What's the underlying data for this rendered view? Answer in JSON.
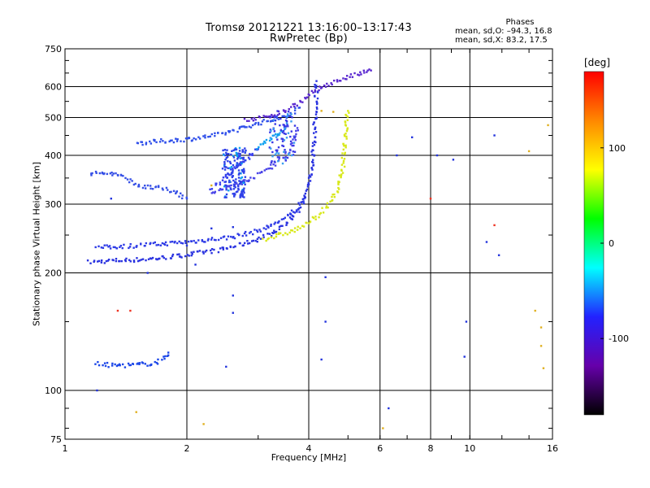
{
  "title_line1": "Tromsø 20121221 13:16:00–13:17:43",
  "title_line2": "RwPretec (Bp)",
  "phases": {
    "title": "Phases",
    "line1": "mean, sd,O: –94.3, 16.8",
    "line2": "mean, sd,X:  83.2, 17.5"
  },
  "colorbar": {
    "unit": "[deg]",
    "ticks": [
      100,
      0,
      -100
    ],
    "range": [
      -180,
      180
    ],
    "colors": [
      "#000000",
      "#6600aa",
      "#2222ff",
      "#00ffff",
      "#00ff00",
      "#ffff00",
      "#ff8800",
      "#ff0000"
    ]
  },
  "chart_data": {
    "type": "scatter",
    "title": "Tromsø 20121221 13:16:00–13:17:43",
    "subtitle": "RwPretec (Bp)",
    "xlabel": "Frequency [MHz]",
    "ylabel": "Stationary phase Virtual Height [km]",
    "x_scale": "log",
    "y_scale": "log",
    "xlim": [
      1,
      16
    ],
    "ylim": [
      75,
      750
    ],
    "x_ticks": [
      1,
      2,
      4,
      6,
      8,
      10,
      16
    ],
    "y_ticks": [
      75,
      100,
      200,
      300,
      400,
      500,
      600,
      750
    ],
    "x_grid": [
      2,
      4,
      6,
      8,
      10
    ],
    "y_grid": [
      100,
      200,
      300,
      400,
      500,
      600
    ],
    "series": [
      {
        "key": "O1",
        "color": "#2a33e0",
        "points": [
          [
            1.15,
            213
          ],
          [
            1.3,
            215
          ],
          [
            1.5,
            216
          ],
          [
            1.7,
            218
          ],
          [
            1.9,
            221
          ],
          [
            2.1,
            224
          ],
          [
            2.4,
            229
          ],
          [
            2.7,
            236
          ],
          [
            3.0,
            244
          ],
          [
            3.3,
            255
          ],
          [
            3.6,
            272
          ],
          [
            3.85,
            300
          ],
          [
            4.0,
            340
          ],
          [
            4.08,
            380
          ],
          [
            4.12,
            430
          ],
          [
            4.15,
            500
          ],
          [
            4.17,
            560
          ],
          [
            4.18,
            620
          ]
        ]
      },
      {
        "key": "O2",
        "color": "#2e3be6",
        "points": [
          [
            1.2,
            232
          ],
          [
            1.5,
            235
          ],
          [
            1.8,
            238
          ],
          [
            2.1,
            241
          ],
          [
            2.5,
            246
          ],
          [
            2.9,
            254
          ],
          [
            3.2,
            263
          ],
          [
            3.5,
            276
          ],
          [
            3.75,
            292
          ],
          [
            3.9,
            310
          ]
        ]
      },
      {
        "key": "O3",
        "color": "#3050ea",
        "points": [
          [
            1.5,
            430
          ],
          [
            1.8,
            436
          ],
          [
            2.1,
            442
          ],
          [
            2.4,
            452
          ],
          [
            2.7,
            468
          ],
          [
            3.0,
            483
          ],
          [
            3.3,
            495
          ],
          [
            3.6,
            510
          ],
          [
            3.8,
            530
          ]
        ]
      },
      {
        "key": "O4",
        "color": "#4a44e8",
        "points": [
          [
            2.3,
            320
          ],
          [
            2.6,
            335
          ],
          [
            2.9,
            350
          ],
          [
            3.2,
            372
          ],
          [
            3.5,
            400
          ],
          [
            3.65,
            430
          ],
          [
            3.75,
            470
          ]
        ]
      },
      {
        "key": "O5",
        "color": "#3a40f0",
        "points": [
          [
            2.3,
            330
          ],
          [
            2.5,
            350
          ],
          [
            2.6,
            370
          ],
          [
            2.8,
            390
          ],
          [
            3.0,
            415
          ]
        ]
      },
      {
        "key": "O6",
        "color": "#1c47e8",
        "points": [
          [
            1.2,
            117
          ],
          [
            1.3,
            116
          ],
          [
            1.45,
            116
          ],
          [
            1.6,
            117
          ],
          [
            1.7,
            118
          ],
          [
            1.8,
            125
          ]
        ]
      },
      {
        "key": "O7",
        "color": "#3650e6",
        "points": [
          [
            1.15,
            360
          ],
          [
            1.25,
            360
          ],
          [
            1.35,
            358
          ],
          [
            1.55,
            332
          ],
          [
            1.7,
            330
          ],
          [
            1.9,
            320
          ],
          [
            2.0,
            310
          ]
        ]
      },
      {
        "key": "X1",
        "color": "#d8e81a",
        "points": [
          [
            3.1,
            244
          ],
          [
            3.4,
            250
          ],
          [
            3.7,
            258
          ],
          [
            4.0,
            268
          ],
          [
            4.3,
            285
          ],
          [
            4.55,
            305
          ],
          [
            4.75,
            335
          ],
          [
            4.85,
            370
          ],
          [
            4.9,
            420
          ],
          [
            4.95,
            480
          ],
          [
            5.0,
            520
          ]
        ]
      },
      {
        "key": "X2",
        "color": "#0aa0f0",
        "points": [
          [
            3.0,
            420
          ],
          [
            3.2,
            440
          ],
          [
            3.4,
            455
          ],
          [
            3.5,
            470
          ]
        ]
      },
      {
        "key": "top-streak",
        "color": "#5a28d0",
        "points": [
          [
            2.8,
            492
          ],
          [
            3.1,
            500
          ],
          [
            3.5,
            520
          ],
          [
            3.9,
            555
          ],
          [
            4.2,
            590
          ],
          [
            4.5,
            610
          ],
          [
            4.9,
            630
          ],
          [
            5.4,
            650
          ],
          [
            5.7,
            660
          ]
        ]
      },
      {
        "key": "scattered",
        "color": "#2233dd",
        "points": [
          [
            2.6,
            262
          ],
          [
            2.3,
            260
          ],
          [
            2.6,
            158
          ],
          [
            2.0,
            235
          ],
          [
            4.4,
            195
          ],
          [
            4.4,
            150
          ],
          [
            4.3,
            120
          ],
          [
            2.5,
            115
          ],
          [
            2.6,
            175
          ],
          [
            6.3,
            90
          ],
          [
            6.6,
            400
          ],
          [
            7.2,
            445
          ],
          [
            8.3,
            400
          ],
          [
            9.1,
            390
          ],
          [
            9.8,
            150
          ],
          [
            11.0,
            240
          ],
          [
            11.5,
            450
          ],
          [
            11.8,
            222
          ],
          [
            9.7,
            122
          ],
          [
            1.3,
            310
          ],
          [
            1.2,
            100
          ],
          [
            1.6,
            200
          ],
          [
            2.1,
            210
          ]
        ]
      },
      {
        "key": "scattered-yellow",
        "color": "#e0b020",
        "points": [
          [
            1.5,
            88
          ],
          [
            2.2,
            82
          ],
          [
            6.1,
            80
          ],
          [
            14.5,
            160
          ],
          [
            15.0,
            145
          ],
          [
            15.0,
            130
          ],
          [
            15.2,
            114
          ],
          [
            15.6,
            478
          ],
          [
            14.0,
            410
          ],
          [
            2.3,
            335
          ],
          [
            4.6,
            517
          ],
          [
            4.3,
            520
          ]
        ]
      },
      {
        "key": "scattered-red",
        "color": "#ee3322",
        "points": [
          [
            1.35,
            160
          ],
          [
            1.45,
            160
          ],
          [
            8.0,
            310
          ],
          [
            11.5,
            265
          ]
        ]
      }
    ]
  }
}
